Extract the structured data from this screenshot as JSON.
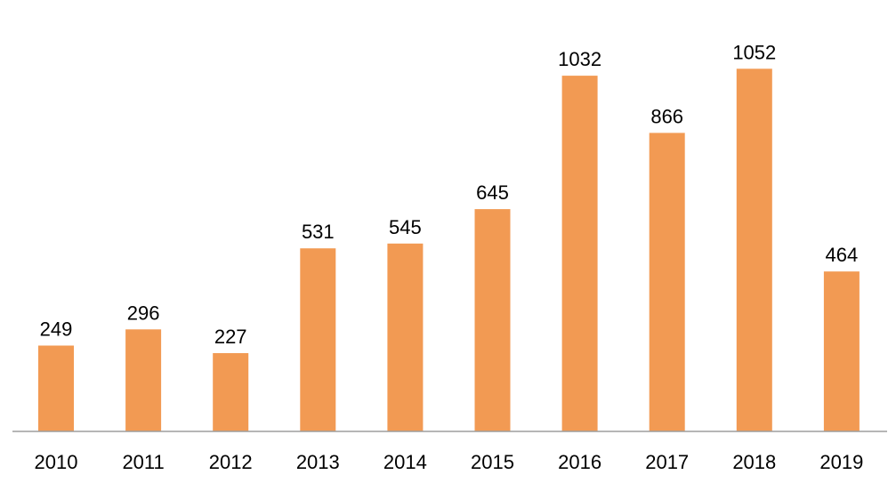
{
  "chart_data": {
    "type": "bar",
    "title": "",
    "xlabel": "",
    "ylabel": "",
    "categories": [
      "2010",
      "2011",
      "2012",
      "2013",
      "2014",
      "2015",
      "2016",
      "2017",
      "2018",
      "2019"
    ],
    "values": [
      249,
      296,
      227,
      531,
      545,
      645,
      1032,
      866,
      1052,
      464
    ],
    "ylim": [
      0,
      1100
    ],
    "grid": false,
    "legend": "none",
    "show_value_labels": true,
    "bar_color": "#F29A53",
    "axis_color": "#9E9E9E",
    "text_color": "#000000"
  }
}
